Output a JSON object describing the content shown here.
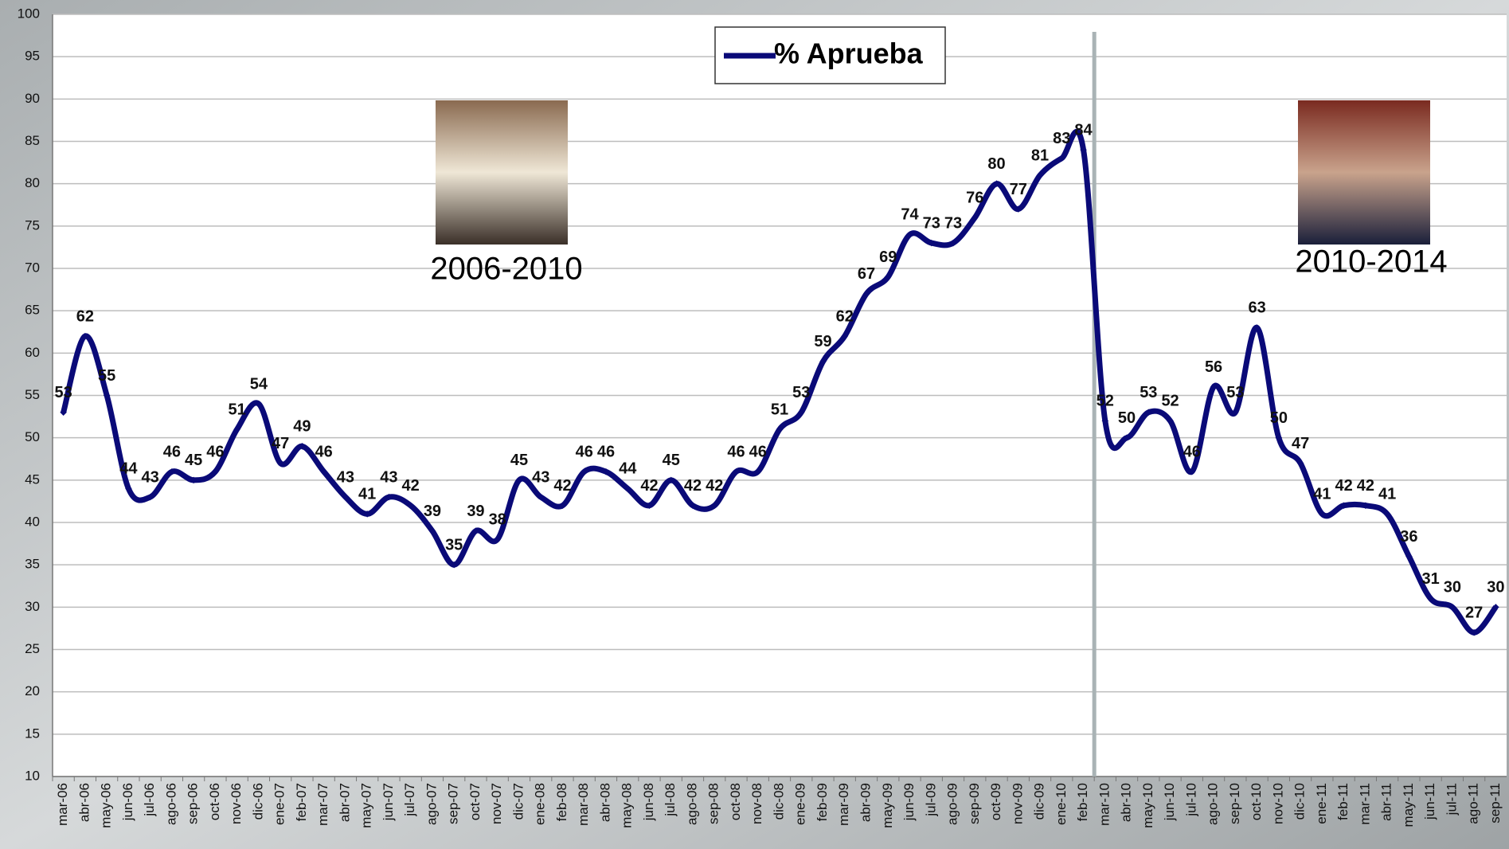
{
  "chart_data": {
    "type": "line",
    "categories": [
      "mar-06",
      "abr-06",
      "may-06",
      "jun-06",
      "jul-06",
      "ago-06",
      "sep-06",
      "oct-06",
      "nov-06",
      "dic-06",
      "ene-07",
      "feb-07",
      "mar-07",
      "abr-07",
      "may-07",
      "jun-07",
      "jul-07",
      "ago-07",
      "sep-07",
      "oct-07",
      "nov-07",
      "dic-07",
      "ene-08",
      "feb-08",
      "mar-08",
      "abr-08",
      "may-08",
      "jun-08",
      "jul-08",
      "ago-08",
      "sep-08",
      "oct-08",
      "nov-08",
      "dic-08",
      "ene-09",
      "feb-09",
      "mar-09",
      "abr-09",
      "may-09",
      "jun-09",
      "jul-09",
      "ago-09",
      "sep-09",
      "oct-09",
      "nov-09",
      "dic-09",
      "ene-10",
      "feb-10",
      "mar-10",
      "abr-10",
      "may-10",
      "jun-10",
      "jul-10",
      "ago-10",
      "sep-10",
      "oct-10",
      "nov-10",
      "dic-10",
      "ene-11",
      "feb-11",
      "mar-11",
      "abr-11",
      "may-11",
      "jun-11",
      "jul-11",
      "ago-11",
      "sep-11"
    ],
    "series": [
      {
        "name": "% Aprueba",
        "color": "#0a0a78",
        "values": [
          53,
          62,
          55,
          44,
          43,
          46,
          45,
          46,
          51,
          54,
          47,
          49,
          46,
          43,
          41,
          43,
          42,
          39,
          35,
          39,
          38,
          45,
          43,
          42,
          46,
          46,
          44,
          42,
          45,
          42,
          42,
          46,
          46,
          51,
          53,
          59,
          62,
          67,
          69,
          74,
          73,
          73,
          76,
          80,
          77,
          81,
          83,
          84,
          52,
          50,
          53,
          52,
          46,
          56,
          53,
          63,
          50,
          47,
          41,
          42,
          42,
          41,
          36,
          31,
          30,
          27,
          30
        ]
      }
    ],
    "ylim": [
      10,
      100
    ],
    "yticks": [
      10,
      15,
      20,
      25,
      30,
      35,
      40,
      45,
      50,
      55,
      60,
      65,
      70,
      75,
      80,
      85,
      90,
      95,
      100
    ],
    "grid": true,
    "annotations": [
      "2006-2010",
      "2010-2014"
    ]
  }
}
